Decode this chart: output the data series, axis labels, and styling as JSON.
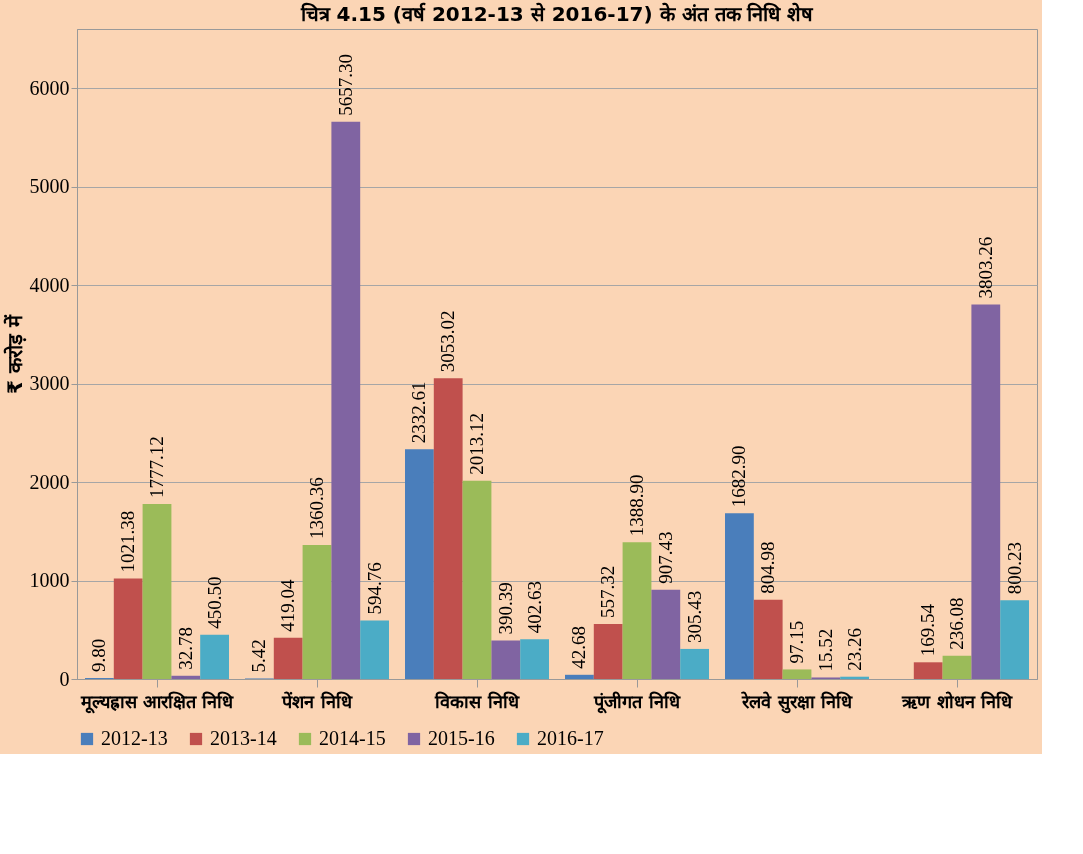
{
  "chart_data": {
    "type": "bar",
    "title": "चित्र 4.15 (वर्ष 2012-13 से 2016-17) के अंत तक निधि शेष",
    "ylabel": "₹ करोड़ में",
    "categories": [
      "मूल्यह्रास आरक्षित निधि",
      "पेंशन निधि",
      "विकास निधि",
      "पूंजीगत निधि",
      "रेलवे सुरक्षा निधि",
      "ऋण शोधन निधि"
    ],
    "series": [
      {
        "name": "2012-13",
        "color": "#4a7ebb",
        "values": [
          9.8,
          5.42,
          2332.61,
          42.68,
          1682.9,
          null
        ],
        "value_labels": [
          "9.80",
          "5.42",
          "2332.61",
          "42.68",
          "1682.90",
          null
        ]
      },
      {
        "name": "2013-14",
        "color": "#c0504d",
        "values": [
          1021.38,
          419.04,
          3053.02,
          557.32,
          804.98,
          169.54
        ],
        "value_labels": [
          "1021.38",
          "419.04",
          "3053.02",
          "557.32",
          "804.98",
          "169.54"
        ]
      },
      {
        "name": "2014-15",
        "color": "#9bbb59",
        "values": [
          1777.12,
          1360.36,
          2013.12,
          1388.9,
          97.15,
          236.08
        ],
        "value_labels": [
          "1777.12",
          "1360.36",
          "2013.12",
          "1388.90",
          "97.15",
          "236.08"
        ]
      },
      {
        "name": "2015-16",
        "color": "#8064a2",
        "values": [
          32.78,
          5657.3,
          390.39,
          907.43,
          15.52,
          3803.26
        ],
        "value_labels": [
          "32.78",
          "5657.30",
          "390.39",
          "907.43",
          "15.52",
          "3803.26"
        ]
      },
      {
        "name": "2016-17",
        "color": "#4bacc6",
        "values": [
          450.5,
          594.76,
          402.63,
          305.43,
          23.26,
          800.23
        ],
        "value_labels": [
          "450.50",
          "594.76",
          "402.63",
          "305.43",
          "23.26",
          "800.23"
        ]
      }
    ],
    "ylim": [
      0,
      6600
    ],
    "yticks": [
      0,
      1000,
      2000,
      3000,
      4000,
      5000,
      6000
    ],
    "grid": "y",
    "legend": "bottom"
  }
}
